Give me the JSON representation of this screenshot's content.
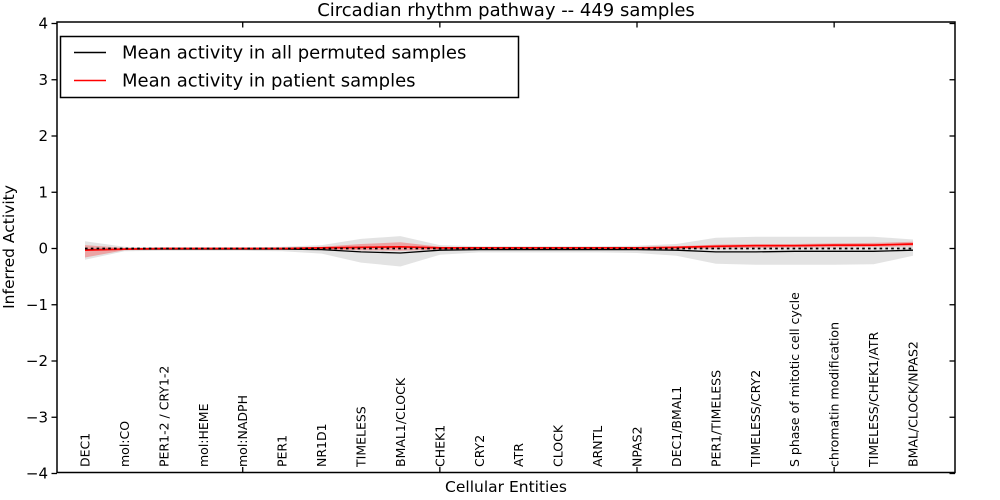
{
  "figure": {
    "title": "Circadian rhythm pathway -- 449 samples",
    "background": "#ffffff"
  },
  "legend": {
    "items": [
      {
        "label": "Mean activity in all permuted samples",
        "color": "#000000"
      },
      {
        "label": "Mean activity in patient samples",
        "color": "#ff0000"
      }
    ]
  },
  "chart_data": {
    "type": "line",
    "title": "Circadian rhythm pathway -- 449 samples",
    "xlabel": "Cellular Entities",
    "ylabel": "Inferred Activity",
    "ylim": [
      -4,
      4
    ],
    "grid": false,
    "legend_position": "upper left",
    "ytick_values": [
      4,
      3,
      2,
      1,
      0,
      -1,
      -2,
      -3,
      -4
    ],
    "ytick_labels": [
      "4",
      "3",
      "2",
      "1",
      "0",
      "−1",
      "−2",
      "−3",
      "−4"
    ],
    "xtick_values": [
      5,
      10,
      15,
      20
    ],
    "categories": [
      "DEC1",
      "mol:CO",
      "PER1-2 / CRY1-2",
      "mol:HEME",
      "mol:NADPH",
      "PER1",
      "NR1D1",
      "TIMELESS",
      "BMAL1/CLOCK",
      "CHEK1",
      "CRY2",
      "ATR",
      "CLOCK",
      "ARNTL",
      "NPAS2",
      "DEC1/BMAL1",
      "PER1/TIMELESS",
      "TIMELESS/CRY2",
      "S phase of mitotic cell cycle",
      "chromatin modification",
      "TIMELESS/CHEK1/ATR",
      "BMAL/CLOCK/NPAS2"
    ],
    "series": [
      {
        "name": "Mean activity in all permuted samples",
        "color": "#000000",
        "style": "solid",
        "values": [
          -0.02,
          -0.01,
          -0.01,
          -0.01,
          -0.01,
          -0.01,
          -0.02,
          -0.06,
          -0.08,
          -0.03,
          -0.02,
          -0.02,
          -0.02,
          -0.02,
          -0.02,
          -0.03,
          -0.06,
          -0.06,
          -0.05,
          -0.05,
          -0.05,
          -0.03
        ]
      },
      {
        "name": "Mean activity in patient samples",
        "color": "#ff0000",
        "style": "solid",
        "values": [
          -0.03,
          -0.01,
          0.0,
          0.0,
          0.0,
          0.0,
          0.01,
          0.02,
          0.03,
          0.01,
          0.01,
          0.01,
          0.01,
          0.01,
          0.01,
          0.02,
          0.04,
          0.05,
          0.05,
          0.06,
          0.06,
          0.08
        ]
      }
    ],
    "bands": [
      {
        "name": "permuted-samples-std-band",
        "color": "rgba(0,0,0,0.11)",
        "upper": [
          0.13,
          0.03,
          0.02,
          0.02,
          0.02,
          0.03,
          0.06,
          0.17,
          0.22,
          0.06,
          0.04,
          0.04,
          0.04,
          0.04,
          0.05,
          0.08,
          0.19,
          0.21,
          0.21,
          0.21,
          0.21,
          0.16
        ],
        "lower": [
          -0.2,
          -0.05,
          -0.04,
          -0.04,
          -0.04,
          -0.05,
          -0.09,
          -0.25,
          -0.32,
          -0.11,
          -0.07,
          -0.07,
          -0.07,
          -0.07,
          -0.08,
          -0.13,
          -0.27,
          -0.29,
          -0.29,
          -0.29,
          -0.28,
          -0.13
        ]
      },
      {
        "name": "patient-samples-std-band",
        "color": "rgba(255,0,0,0.28)",
        "upper": [
          0.06,
          0.01,
          0.01,
          0.01,
          0.01,
          0.01,
          0.03,
          0.08,
          0.11,
          0.03,
          0.02,
          0.02,
          0.02,
          0.02,
          0.02,
          0.04,
          0.07,
          0.08,
          0.08,
          0.09,
          0.1,
          0.12
        ],
        "lower": [
          -0.16,
          -0.03,
          -0.02,
          -0.02,
          -0.02,
          -0.02,
          -0.02,
          -0.03,
          -0.04,
          -0.02,
          -0.01,
          -0.01,
          -0.01,
          -0.01,
          -0.01,
          -0.01,
          0.0,
          0.01,
          0.02,
          0.02,
          0.03,
          0.04
        ]
      }
    ],
    "zero_line": {
      "value": 0,
      "color": "#000000",
      "style": "dashed"
    }
  }
}
